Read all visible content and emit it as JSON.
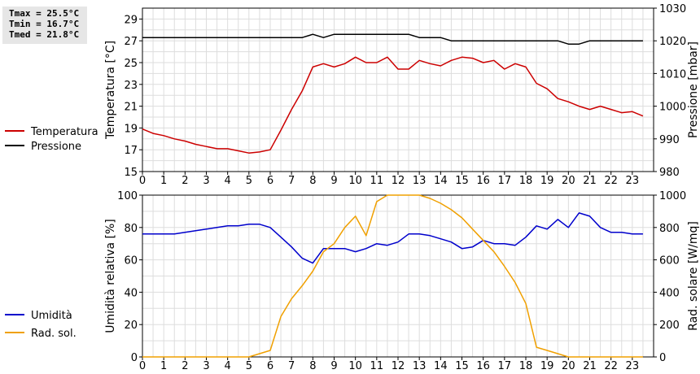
{
  "stats": {
    "tmax": "Tmax = 25.5°C",
    "tmin": "Tmin = 16.7°C",
    "tmed": "Tmed = 21.8°C"
  },
  "chart_data": [
    {
      "type": "line",
      "title": "",
      "xlabel": "",
      "x_ticks": [
        0,
        1,
        2,
        3,
        4,
        5,
        6,
        7,
        8,
        9,
        10,
        11,
        12,
        13,
        14,
        15,
        16,
        17,
        18,
        19,
        20,
        21,
        22,
        23
      ],
      "xlim": [
        0,
        24
      ],
      "ylabel": "Temperatura [°C]",
      "ylim": [
        15,
        30
      ],
      "y_ticks": [
        15,
        17,
        19,
        21,
        23,
        25,
        27,
        29
      ],
      "y2label": "Pressione [mbar]",
      "y2lim": [
        980,
        1030
      ],
      "y2_ticks": [
        980,
        990,
        1000,
        1010,
        1020,
        1030
      ],
      "grid": true,
      "legend_position": "left",
      "series": [
        {
          "name": "Temperatura",
          "color": "#cc0000",
          "axis": "left",
          "x": [
            0,
            0.5,
            1,
            1.5,
            2,
            2.5,
            3,
            3.5,
            4,
            4.5,
            5,
            5.5,
            6,
            6.5,
            7,
            7.5,
            8,
            8.5,
            9,
            9.5,
            10,
            10.5,
            11,
            11.5,
            12,
            12.5,
            13,
            13.5,
            14,
            14.5,
            15,
            15.5,
            16,
            16.5,
            17,
            17.5,
            18,
            18.5,
            19,
            19.5,
            20,
            20.5,
            21,
            21.5,
            22,
            22.5,
            23,
            23.5
          ],
          "values": [
            18.9,
            18.5,
            18.3,
            18.0,
            17.8,
            17.5,
            17.3,
            17.1,
            17.1,
            16.9,
            16.7,
            16.8,
            17.0,
            18.8,
            20.7,
            22.4,
            24.6,
            24.9,
            24.6,
            24.9,
            25.5,
            25.0,
            25.0,
            25.5,
            24.4,
            24.4,
            25.2,
            24.9,
            24.7,
            25.2,
            25.5,
            25.4,
            25.0,
            25.2,
            24.4,
            24.9,
            24.6,
            23.1,
            22.6,
            21.7,
            21.4,
            21.0,
            20.7,
            21.0,
            20.7,
            20.4,
            20.5,
            20.1
          ]
        },
        {
          "name": "Pressione",
          "color": "#000000",
          "axis": "right",
          "x": [
            0,
            1,
            2,
            3,
            4,
            5,
            6,
            7,
            7.5,
            8,
            8.5,
            9,
            10,
            11,
            12,
            12.5,
            13,
            14,
            14.5,
            15,
            16,
            17,
            18,
            19,
            19.5,
            20,
            20.5,
            21,
            22,
            23,
            23.5
          ],
          "values": [
            1021,
            1021,
            1021,
            1021,
            1021,
            1021,
            1021,
            1021,
            1021,
            1022,
            1021,
            1022,
            1022,
            1022,
            1022,
            1022,
            1021,
            1021,
            1020,
            1020,
            1020,
            1020,
            1020,
            1020,
            1020,
            1019,
            1019,
            1020,
            1020,
            1020,
            1020
          ]
        }
      ]
    },
    {
      "type": "line",
      "title": "",
      "xlabel": "",
      "x_ticks": [
        0,
        1,
        2,
        3,
        4,
        5,
        6,
        7,
        8,
        9,
        10,
        11,
        12,
        13,
        14,
        15,
        16,
        17,
        18,
        19,
        20,
        21,
        22,
        23
      ],
      "xlim": [
        0,
        24
      ],
      "ylabel": "Umidità relativa [%]",
      "ylim": [
        0,
        100
      ],
      "y_ticks": [
        0,
        20,
        40,
        60,
        80,
        100
      ],
      "y2label": "Rad. solare [W/mq]",
      "y2lim": [
        0,
        1000
      ],
      "y2_ticks": [
        0,
        200,
        400,
        600,
        800,
        1000
      ],
      "grid": true,
      "legend_position": "left",
      "series": [
        {
          "name": "Umidità",
          "color": "#0000cc",
          "axis": "left",
          "x": [
            0,
            0.5,
            1,
            1.5,
            2,
            2.5,
            3,
            3.5,
            4,
            4.5,
            5,
            5.5,
            6,
            6.5,
            7,
            7.5,
            8,
            8.5,
            9,
            9.5,
            10,
            10.5,
            11,
            11.5,
            12,
            12.5,
            13,
            13.5,
            14,
            14.5,
            15,
            15.5,
            16,
            16.5,
            17,
            17.5,
            18,
            18.5,
            19,
            19.5,
            20,
            20.5,
            21,
            21.5,
            22,
            22.5,
            23,
            23.5
          ],
          "values": [
            76,
            76,
            76,
            76,
            77,
            78,
            79,
            80,
            81,
            81,
            82,
            82,
            80,
            74,
            68,
            61,
            58,
            67,
            67,
            67,
            65,
            67,
            70,
            69,
            71,
            76,
            76,
            75,
            73,
            71,
            67,
            68,
            72,
            70,
            70,
            69,
            74,
            81,
            79,
            85,
            80,
            89,
            87,
            80,
            77,
            77,
            76,
            76
          ]
        },
        {
          "name": "Rad. sol.",
          "color": "#f0a000",
          "axis": "right",
          "x": [
            0,
            1,
            2,
            3,
            4,
            5,
            5.5,
            6,
            6.5,
            7,
            7.5,
            8,
            8.5,
            9,
            9.5,
            10,
            10.5,
            11,
            11.5,
            12,
            12.5,
            13,
            13.5,
            14,
            14.5,
            15,
            15.5,
            16,
            16.5,
            17,
            17.5,
            18,
            18.5,
            19,
            19.5,
            20,
            21,
            22,
            23,
            23.5
          ],
          "values": [
            0,
            0,
            0,
            0,
            0,
            0,
            20,
            40,
            250,
            360,
            440,
            530,
            650,
            700,
            800,
            870,
            750,
            960,
            1000,
            1000,
            1000,
            1000,
            980,
            950,
            910,
            860,
            790,
            720,
            650,
            560,
            460,
            330,
            60,
            40,
            20,
            0,
            0,
            0,
            0,
            0
          ]
        }
      ]
    }
  ]
}
